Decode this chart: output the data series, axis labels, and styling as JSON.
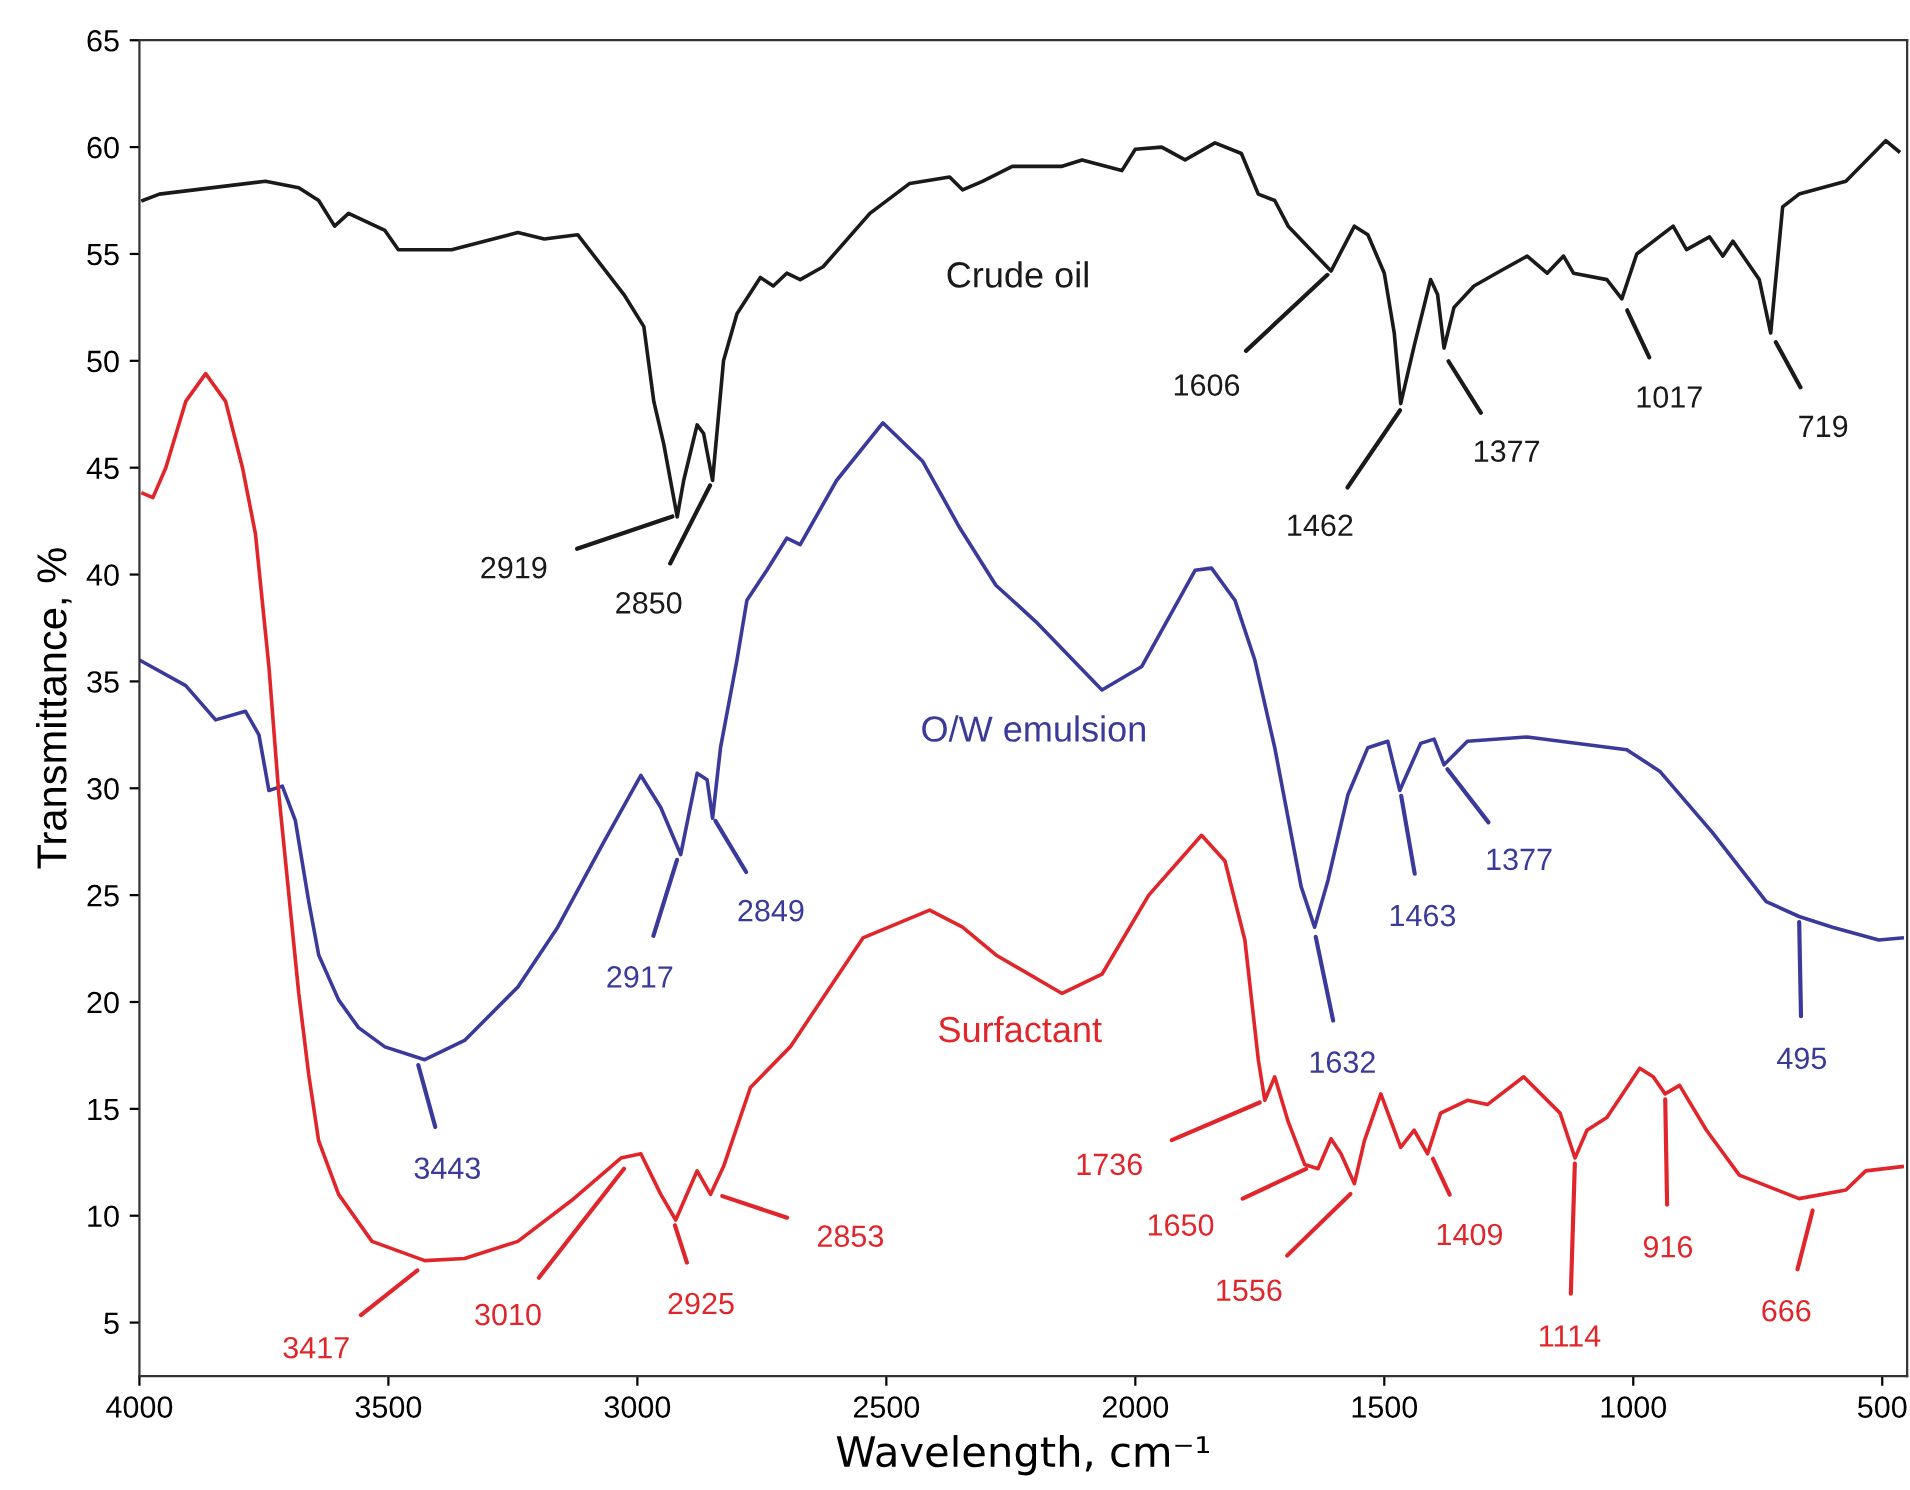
{
  "chart_data": {
    "type": "line",
    "xlabel": "Wavelength, cm⁻¹",
    "ylabel": "Transmittance, %",
    "xlim": [
      4000,
      450
    ],
    "xticks": [
      4000,
      3500,
      3000,
      2500,
      2000,
      1500,
      1000,
      500
    ],
    "ylim": [
      2.5,
      65
    ],
    "yticks": [
      5,
      10,
      15,
      20,
      25,
      30,
      35,
      40,
      45,
      50,
      55,
      60,
      65
    ],
    "grid": false,
    "legend": false,
    "marker": "none",
    "line_style": "solid",
    "series": [
      {
        "name": "Crude oil",
        "color": "#1a1a1a",
        "x": [
          3993,
          3960,
          3747,
          3680,
          3640,
          3608,
          3580,
          3507,
          3480,
          3373,
          3240,
          3187,
          3120,
          3080,
          3027,
          2987,
          2967,
          2947,
          2920,
          2907,
          2880,
          2867,
          2849,
          2827,
          2800,
          2753,
          2727,
          2700,
          2673,
          2627,
          2533,
          2453,
          2373,
          2347,
          2307,
          2247,
          2147,
          2107,
          2027,
          2000,
          1947,
          1900,
          1840,
          1787,
          1753,
          1720,
          1693,
          1607,
          1560,
          1533,
          1500,
          1480,
          1467,
          1440,
          1407,
          1393,
          1380,
          1360,
          1320,
          1267,
          1213,
          1173,
          1140,
          1120,
          1053,
          1023,
          993,
          920,
          893,
          847,
          820,
          800,
          747,
          724,
          700,
          667,
          573,
          493,
          467
        ],
        "values": [
          57.5,
          57.8,
          58.4,
          58.1,
          57.5,
          56.3,
          56.9,
          56.1,
          55.2,
          55.2,
          56.0,
          55.7,
          55.9,
          54.7,
          53.1,
          51.6,
          48.1,
          46.1,
          42.7,
          44.4,
          47.0,
          46.6,
          44.4,
          50.0,
          52.2,
          53.9,
          53.5,
          54.1,
          53.8,
          54.4,
          56.9,
          58.3,
          58.6,
          58.0,
          58.4,
          59.1,
          59.1,
          59.4,
          58.9,
          59.9,
          60.0,
          59.4,
          60.2,
          59.7,
          57.8,
          57.5,
          56.3,
          54.2,
          56.3,
          55.9,
          54.1,
          51.3,
          48.0,
          50.7,
          53.8,
          53.1,
          50.6,
          52.5,
          53.5,
          54.2,
          54.9,
          54.1,
          54.9,
          54.1,
          53.8,
          52.9,
          55.0,
          56.3,
          55.2,
          55.8,
          54.9,
          55.6,
          53.8,
          51.3,
          57.2,
          57.8,
          58.4,
          60.3,
          59.8
        ]
      },
      {
        "name": "O/W emulsion",
        "color": "#3a3a9a",
        "x": [
          4000,
          3907,
          3847,
          3787,
          3760,
          3740,
          3713,
          3687,
          3660,
          3640,
          3600,
          3560,
          3507,
          3427,
          3347,
          3240,
          3160,
          3067,
          2993,
          2953,
          2913,
          2880,
          2860,
          2849,
          2833,
          2800,
          2780,
          2740,
          2700,
          2673,
          2600,
          2507,
          2427,
          2353,
          2280,
          2200,
          2067,
          1987,
          1880,
          1847,
          1800,
          1760,
          1720,
          1667,
          1640,
          1613,
          1573,
          1533,
          1493,
          1469,
          1427,
          1400,
          1380,
          1333,
          1213,
          1013,
          947,
          840,
          733,
          667,
          600,
          507,
          460
        ],
        "values": [
          36.0,
          34.8,
          33.2,
          33.6,
          32.5,
          29.9,
          30.1,
          28.5,
          24.7,
          22.2,
          20.1,
          18.8,
          17.9,
          17.3,
          18.2,
          20.7,
          23.5,
          27.5,
          30.6,
          29.1,
          26.9,
          30.7,
          30.4,
          28.6,
          31.9,
          36.0,
          38.8,
          40.2,
          41.7,
          41.4,
          44.4,
          47.1,
          45.3,
          42.2,
          39.5,
          37.8,
          34.6,
          35.7,
          40.2,
          40.3,
          38.8,
          36.0,
          31.9,
          25.4,
          23.5,
          25.7,
          29.7,
          31.9,
          32.2,
          29.9,
          32.1,
          32.3,
          31.1,
          32.2,
          32.4,
          31.8,
          30.8,
          27.9,
          24.7,
          24.0,
          23.5,
          22.9,
          23.0
        ]
      },
      {
        "name": "Surfactant",
        "color": "#e0262b",
        "x": [
          3993,
          3973,
          3947,
          3907,
          3867,
          3827,
          3793,
          3767,
          3740,
          3720,
          3680,
          3660,
          3640,
          3600,
          3533,
          3427,
          3347,
          3240,
          3133,
          3033,
          2993,
          2953,
          2923,
          2880,
          2853,
          2827,
          2773,
          2693,
          2547,
          2413,
          2347,
          2280,
          2147,
          2067,
          1973,
          1867,
          1820,
          1780,
          1753,
          1740,
          1720,
          1693,
          1660,
          1633,
          1607,
          1587,
          1560,
          1540,
          1507,
          1467,
          1440,
          1413,
          1387,
          1333,
          1293,
          1220,
          1147,
          1117,
          1093,
          1053,
          987,
          960,
          936,
          907,
          853,
          787,
          667,
          573,
          533,
          460
        ],
        "values": [
          43.8,
          43.6,
          45.0,
          48.1,
          49.4,
          48.1,
          45.0,
          41.9,
          35.7,
          29.7,
          20.4,
          16.6,
          13.5,
          11.0,
          8.8,
          7.9,
          8.0,
          8.8,
          10.7,
          12.7,
          12.9,
          11.0,
          9.8,
          12.1,
          11.0,
          12.3,
          16.0,
          17.9,
          23.0,
          24.3,
          23.5,
          22.2,
          20.4,
          21.3,
          25.0,
          27.8,
          26.6,
          22.9,
          17.3,
          15.4,
          16.5,
          14.4,
          12.4,
          12.2,
          13.6,
          12.9,
          11.5,
          13.5,
          15.7,
          13.2,
          14.0,
          12.9,
          14.8,
          15.4,
          15.2,
          16.5,
          14.8,
          12.7,
          14.0,
          14.6,
          16.9,
          16.5,
          15.7,
          16.1,
          14.0,
          11.9,
          10.8,
          11.2,
          12.1,
          12.3
        ]
      }
    ],
    "annotations": [
      {
        "text": "2919",
        "x": 2919,
        "y": 42.8
      },
      {
        "text": "2850",
        "x": 2849,
        "y": 44.4
      },
      {
        "text": "1606",
        "x": 1606,
        "y": 54.2
      },
      {
        "text": "1462",
        "x": 1462,
        "y": 47.9
      },
      {
        "text": "1377",
        "x": 1377,
        "y": 50.2
      },
      {
        "text": "1017",
        "x": 1017,
        "y": 52.6
      },
      {
        "text": "719",
        "x": 719,
        "y": 51.1
      },
      {
        "text": "3443",
        "x": 3443,
        "y": 17.3
      },
      {
        "text": "2917",
        "x": 2917,
        "y": 26.9
      },
      {
        "text": "2849",
        "x": 2849,
        "y": 28.7
      },
      {
        "text": "1632",
        "x": 1640,
        "y": 23.3
      },
      {
        "text": "1463",
        "x": 1468,
        "y": 29.9
      },
      {
        "text": "1377",
        "x": 1380,
        "y": 31.1
      },
      {
        "text": "495",
        "x": 667,
        "y": 24.0
      },
      {
        "text": "3417",
        "x": 3433,
        "y": 7.6
      },
      {
        "text": "3010",
        "x": 3020,
        "y": 12.4
      },
      {
        "text": "2925",
        "x": 2928,
        "y": 9.8
      },
      {
        "text": "2853",
        "x": 2840,
        "y": 11.0
      },
      {
        "text": "1736",
        "x": 1740,
        "y": 15.4
      },
      {
        "text": "1650",
        "x": 1647,
        "y": 12.3
      },
      {
        "text": "1556",
        "x": 1560,
        "y": 11.2
      },
      {
        "text": "1409",
        "x": 1407,
        "y": 12.9
      },
      {
        "text": "1114",
        "x": 1117,
        "y": 12.7
      },
      {
        "text": "916",
        "x": 936,
        "y": 15.7
      },
      {
        "text": "666",
        "x": 637,
        "y": 10.5
      }
    ]
  }
}
